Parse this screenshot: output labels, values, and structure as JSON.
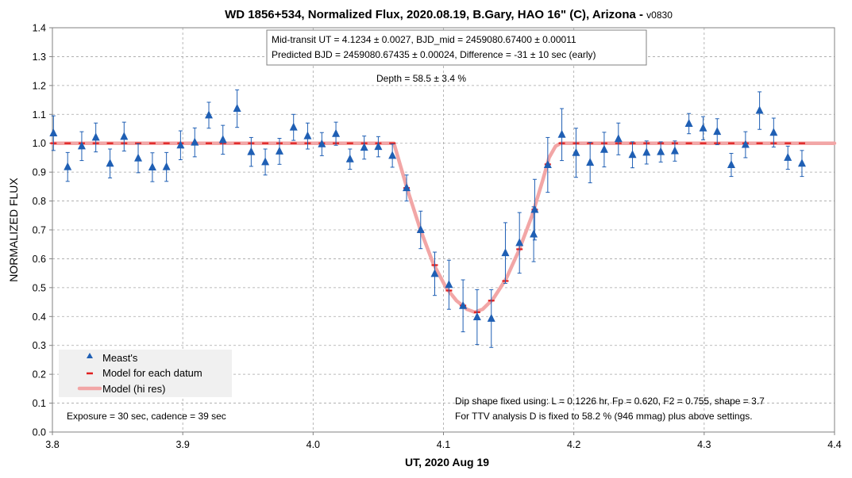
{
  "chart_data": {
    "type": "scatter",
    "title": "WD 1856+534, Normalized Flux, 2020.08.19, B.Gary, HAO 16\" (C), Arizona - ",
    "title_version": "v0830",
    "xlabel": "UT, 2020 Aug 19",
    "ylabel": "NORMALIZED FLUX",
    "xlim": [
      3.8,
      4.4
    ],
    "ylim": [
      0.0,
      1.4
    ],
    "x_ticks": [
      "3.8",
      "3.9",
      "4.0",
      "4.1",
      "4.2",
      "4.3",
      "4.4"
    ],
    "y_ticks": [
      "0.0",
      "0.1",
      "0.2",
      "0.3",
      "0.4",
      "0.5",
      "0.6",
      "0.7",
      "0.8",
      "0.9",
      "1.0",
      "1.1",
      "1.2",
      "1.3",
      "1.4"
    ],
    "grid": true,
    "legend_position": "bottom-left",
    "legend": [
      "Meast's",
      "Model for each datum",
      "Model (hi res)"
    ],
    "colors": {
      "measurement": "#1f5fb4",
      "error_bar": "#1f5fb4",
      "model_datum": "#e02020",
      "model_hires": "#f2a6a6",
      "grid": "#a6a6a6"
    },
    "annotations": {
      "box_line1": "Mid-transit UT = 4.1234 ± 0.0027, BJD_mid = 2459080.67400 ± 0.00011",
      "box_line2": "Predicted BJD = 2459080.67435 ± 0.00024, Difference = -31 ± 10 sec (early)",
      "depth": "Depth = 58.5 ± 3.4 %",
      "dip_line1": "Dip shape fixed using:  L = 0.1226 hr, Fp = 0.620, F2 = 0.755, shape = 3.7",
      "dip_line2": "For TTV analysis D is fixed  to 58.2 % (946 mmag) plus above settings.",
      "exposure": "Exposure = 30 sec, cadence = 39 sec"
    },
    "series": [
      {
        "name": "Meast's",
        "points": [
          {
            "x": 3.8008,
            "y": 1.035,
            "err": 0.06
          },
          {
            "x": 3.8117,
            "y": 0.918,
            "err": 0.05
          },
          {
            "x": 3.8225,
            "y": 0.99,
            "err": 0.05
          },
          {
            "x": 3.8333,
            "y": 1.02,
            "err": 0.05
          },
          {
            "x": 3.8442,
            "y": 0.93,
            "err": 0.05
          },
          {
            "x": 3.855,
            "y": 1.023,
            "err": 0.05
          },
          {
            "x": 3.8658,
            "y": 0.948,
            "err": 0.05
          },
          {
            "x": 3.8767,
            "y": 0.917,
            "err": 0.05
          },
          {
            "x": 3.8875,
            "y": 0.918,
            "err": 0.05
          },
          {
            "x": 3.8983,
            "y": 0.993,
            "err": 0.05
          },
          {
            "x": 3.9092,
            "y": 1.003,
            "err": 0.05
          },
          {
            "x": 3.92,
            "y": 1.097,
            "err": 0.045
          },
          {
            "x": 3.9308,
            "y": 1.012,
            "err": 0.05
          },
          {
            "x": 3.9417,
            "y": 1.12,
            "err": 0.065
          },
          {
            "x": 3.9525,
            "y": 0.97,
            "err": 0.05
          },
          {
            "x": 3.9633,
            "y": 0.935,
            "err": 0.045
          },
          {
            "x": 3.9742,
            "y": 0.972,
            "err": 0.045
          },
          {
            "x": 3.985,
            "y": 1.055,
            "err": 0.045
          },
          {
            "x": 3.9958,
            "y": 1.025,
            "err": 0.045
          },
          {
            "x": 4.0067,
            "y": 0.997,
            "err": 0.04
          },
          {
            "x": 4.0175,
            "y": 1.033,
            "err": 0.04
          },
          {
            "x": 4.0283,
            "y": 0.945,
            "err": 0.035
          },
          {
            "x": 4.0392,
            "y": 0.985,
            "err": 0.04
          },
          {
            "x": 4.05,
            "y": 0.988,
            "err": 0.035
          },
          {
            "x": 4.0608,
            "y": 0.957,
            "err": 0.04
          },
          {
            "x": 4.0717,
            "y": 0.845,
            "err": 0.045
          },
          {
            "x": 4.0825,
            "y": 0.7,
            "err": 0.065
          },
          {
            "x": 4.0933,
            "y": 0.548,
            "err": 0.075
          },
          {
            "x": 4.1042,
            "y": 0.51,
            "err": 0.085
          },
          {
            "x": 4.115,
            "y": 0.437,
            "err": 0.09
          },
          {
            "x": 4.1258,
            "y": 0.398,
            "err": 0.095
          },
          {
            "x": 4.1367,
            "y": 0.393,
            "err": 0.1
          },
          {
            "x": 4.1475,
            "y": 0.62,
            "err": 0.105
          },
          {
            "x": 4.1583,
            "y": 0.655,
            "err": 0.105
          },
          {
            "x": 4.1692,
            "y": 0.685,
            "err": 0.095
          },
          {
            "x": 4.17,
            "y": 0.77,
            "err": 0.105
          },
          {
            "x": 4.18,
            "y": 0.925,
            "err": 0.095
          },
          {
            "x": 4.1908,
            "y": 1.03,
            "err": 0.09
          },
          {
            "x": 4.2017,
            "y": 0.967,
            "err": 0.085
          },
          {
            "x": 4.2125,
            "y": 0.933,
            "err": 0.07
          },
          {
            "x": 4.2233,
            "y": 0.978,
            "err": 0.06
          },
          {
            "x": 4.2342,
            "y": 1.015,
            "err": 0.055
          },
          {
            "x": 4.245,
            "y": 0.96,
            "err": 0.045
          },
          {
            "x": 4.2558,
            "y": 0.968,
            "err": 0.04
          },
          {
            "x": 4.2667,
            "y": 0.97,
            "err": 0.035
          },
          {
            "x": 4.2775,
            "y": 0.973,
            "err": 0.035
          },
          {
            "x": 4.2883,
            "y": 1.068,
            "err": 0.035
          },
          {
            "x": 4.2992,
            "y": 1.052,
            "err": 0.04
          },
          {
            "x": 4.31,
            "y": 1.04,
            "err": 0.045
          },
          {
            "x": 4.3208,
            "y": 0.925,
            "err": 0.04
          },
          {
            "x": 4.3317,
            "y": 0.995,
            "err": 0.045
          },
          {
            "x": 4.3425,
            "y": 1.113,
            "err": 0.065
          },
          {
            "x": 4.3533,
            "y": 1.037,
            "err": 0.05
          },
          {
            "x": 4.3642,
            "y": 0.95,
            "err": 0.04
          },
          {
            "x": 4.375,
            "y": 0.93,
            "err": 0.045
          }
        ]
      },
      {
        "name": "Model for each datum",
        "points": [
          {
            "x": 3.8008,
            "y": 1.0
          },
          {
            "x": 3.8117,
            "y": 1.0
          },
          {
            "x": 3.8225,
            "y": 1.0
          },
          {
            "x": 3.8333,
            "y": 1.0
          },
          {
            "x": 3.8442,
            "y": 1.0
          },
          {
            "x": 3.855,
            "y": 1.0
          },
          {
            "x": 3.8658,
            "y": 1.0
          },
          {
            "x": 3.8767,
            "y": 1.0
          },
          {
            "x": 3.8875,
            "y": 1.0
          },
          {
            "x": 3.8983,
            "y": 1.0
          },
          {
            "x": 3.9092,
            "y": 1.0
          },
          {
            "x": 3.92,
            "y": 1.0
          },
          {
            "x": 3.9308,
            "y": 1.0
          },
          {
            "x": 3.9417,
            "y": 1.0
          },
          {
            "x": 3.9525,
            "y": 1.0
          },
          {
            "x": 3.9633,
            "y": 1.0
          },
          {
            "x": 3.9742,
            "y": 1.0
          },
          {
            "x": 3.985,
            "y": 1.0
          },
          {
            "x": 3.9958,
            "y": 1.0
          },
          {
            "x": 4.0067,
            "y": 1.0
          },
          {
            "x": 4.0175,
            "y": 1.0
          },
          {
            "x": 4.0283,
            "y": 1.0
          },
          {
            "x": 4.0392,
            "y": 1.0
          },
          {
            "x": 4.05,
            "y": 1.0
          },
          {
            "x": 4.0608,
            "y": 1.0
          },
          {
            "x": 4.0717,
            "y": 0.845
          },
          {
            "x": 4.0825,
            "y": 0.695
          },
          {
            "x": 4.0933,
            "y": 0.578
          },
          {
            "x": 4.1042,
            "y": 0.49
          },
          {
            "x": 4.115,
            "y": 0.438
          },
          {
            "x": 4.1258,
            "y": 0.415
          },
          {
            "x": 4.1367,
            "y": 0.455
          },
          {
            "x": 4.1475,
            "y": 0.523
          },
          {
            "x": 4.1583,
            "y": 0.633
          },
          {
            "x": 4.17,
            "y": 0.77
          },
          {
            "x": 4.18,
            "y": 0.927
          },
          {
            "x": 4.1908,
            "y": 1.0
          },
          {
            "x": 4.2017,
            "y": 1.0
          },
          {
            "x": 4.2125,
            "y": 1.0
          },
          {
            "x": 4.2233,
            "y": 1.0
          },
          {
            "x": 4.2342,
            "y": 1.0
          },
          {
            "x": 4.245,
            "y": 1.0
          },
          {
            "x": 4.2558,
            "y": 1.0
          },
          {
            "x": 4.2667,
            "y": 1.0
          },
          {
            "x": 4.2775,
            "y": 1.0
          },
          {
            "x": 4.2883,
            "y": 1.0
          },
          {
            "x": 4.2992,
            "y": 1.0
          },
          {
            "x": 4.31,
            "y": 1.0
          },
          {
            "x": 4.3208,
            "y": 1.0
          },
          {
            "x": 4.3317,
            "y": 1.0
          },
          {
            "x": 4.3425,
            "y": 1.0
          },
          {
            "x": 4.3533,
            "y": 1.0
          },
          {
            "x": 4.3642,
            "y": 1.0
          },
          {
            "x": 4.375,
            "y": 1.0
          }
        ]
      },
      {
        "name": "Model (hi res)",
        "points": [
          {
            "x": 3.8,
            "y": 1.0
          },
          {
            "x": 4.062,
            "y": 1.0
          },
          {
            "x": 4.072,
            "y": 0.845
          },
          {
            "x": 4.082,
            "y": 0.705
          },
          {
            "x": 4.092,
            "y": 0.585
          },
          {
            "x": 4.102,
            "y": 0.5
          },
          {
            "x": 4.11,
            "y": 0.455
          },
          {
            "x": 4.118,
            "y": 0.425
          },
          {
            "x": 4.124,
            "y": 0.415
          },
          {
            "x": 4.13,
            "y": 0.425
          },
          {
            "x": 4.138,
            "y": 0.46
          },
          {
            "x": 4.148,
            "y": 0.53
          },
          {
            "x": 4.158,
            "y": 0.63
          },
          {
            "x": 4.168,
            "y": 0.75
          },
          {
            "x": 4.176,
            "y": 0.87
          },
          {
            "x": 4.181,
            "y": 0.95
          },
          {
            "x": 4.186,
            "y": 0.99
          },
          {
            "x": 4.19,
            "y": 1.0
          },
          {
            "x": 4.4,
            "y": 1.0
          }
        ]
      }
    ]
  }
}
